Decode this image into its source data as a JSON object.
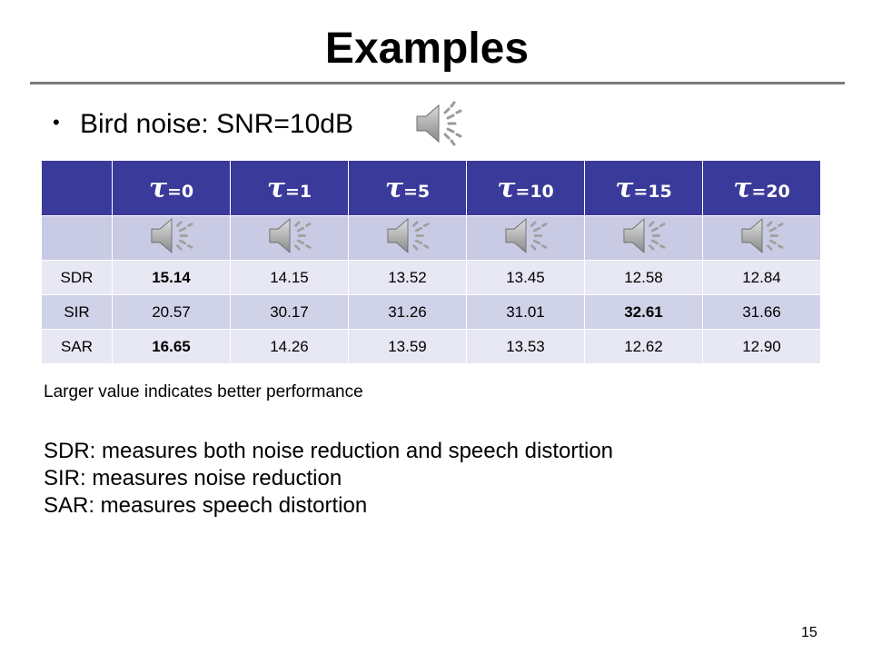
{
  "slide": {
    "title": "Examples",
    "bullet": "Bird noise: SNR=10dB",
    "bullet_marker": "•",
    "page_number": "15"
  },
  "icons": {
    "audio": "speaker-icon"
  },
  "colors": {
    "header_bg": "#3a3a9a",
    "audio_row_bg": "#c9cbe4",
    "row_light": "#e7e8f3",
    "row_dark": "#d0d2e8",
    "title_rule": "#7a7a7a"
  },
  "table": {
    "columns": [
      {
        "symbol": "τ",
        "eq": "=0"
      },
      {
        "symbol": "τ",
        "eq": "=1"
      },
      {
        "symbol": "τ",
        "eq": "=5"
      },
      {
        "symbol": "τ",
        "eq": "=10"
      },
      {
        "symbol": "τ",
        "eq": "=15"
      },
      {
        "symbol": "τ",
        "eq": "=20"
      }
    ],
    "rows": [
      {
        "label": "SDR",
        "values": [
          "15.14",
          "14.15",
          "13.52",
          "13.45",
          "12.58",
          "12.84"
        ],
        "bold_index": 0
      },
      {
        "label": "SIR",
        "values": [
          "20.57",
          "30.17",
          "31.26",
          "31.01",
          "32.61",
          "31.66"
        ],
        "bold_index": 4
      },
      {
        "label": "SAR",
        "values": [
          "16.65",
          "14.26",
          "13.59",
          "13.53",
          "12.62",
          "12.90"
        ],
        "bold_index": 0
      }
    ]
  },
  "note": "Larger value indicates better performance",
  "definitions": [
    "SDR: measures both noise reduction and speech distortion",
    "SIR: measures noise reduction",
    "SAR: measures speech distortion"
  ]
}
